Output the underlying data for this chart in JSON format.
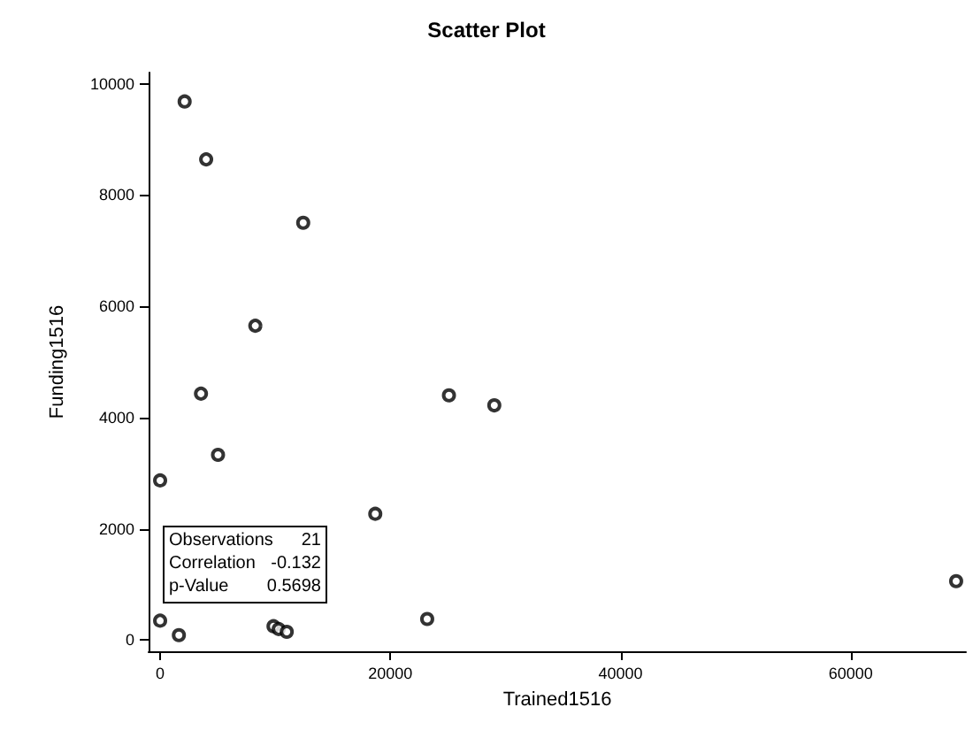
{
  "chart_data": {
    "type": "scatter",
    "title": "Scatter Plot",
    "xlabel": "Trained1516",
    "ylabel": "Funding1516",
    "x": [
      2130,
      4000,
      12430,
      8270,
      3550,
      5030,
      0,
      18690,
      25090,
      23200,
      0,
      1630,
      9850,
      10300,
      11000,
      29030,
      69150
    ],
    "values": [
      9680,
      8640,
      7500,
      5650,
      4430,
      3330,
      2870,
      2270,
      4400,
      380,
      350,
      90,
      250,
      200,
      150,
      4220,
      1060
    ],
    "color": "#000000",
    "marker": "circle",
    "grid": false,
    "xlim": [
      -1000,
      70000
    ],
    "xticks": [
      0,
      20000,
      40000,
      60000
    ],
    "ylim": [
      -200,
      10200
    ],
    "yticks": [
      0,
      2000,
      4000,
      6000,
      8000,
      10000
    ],
    "annotations": [
      "Observations 21",
      "Correlation -0.132",
      "p-Value 0.5698"
    ]
  }
}
